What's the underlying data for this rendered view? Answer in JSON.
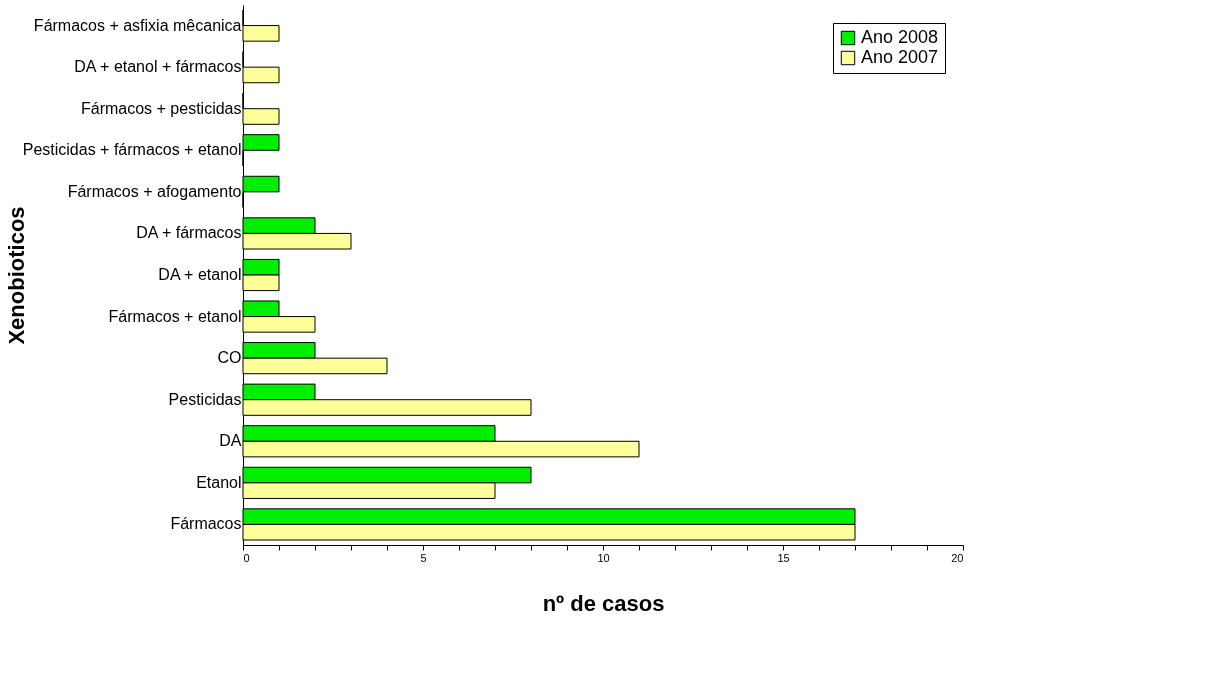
{
  "chart_data": {
    "type": "bar",
    "orientation": "horizontal",
    "xlabel": "nº de casos",
    "ylabel": "Xenobioticos",
    "categories": [
      "Fármacos + asfixia mêcanica",
      "DA + etanol + fármacos",
      "Fármacos + pesticidas",
      "Pesticidas + fármacos + etanol",
      "Fármacos + afogamento",
      "DA + fármacos",
      "DA + etanol",
      "Fármacos + etanol",
      "CO",
      "Pesticidas",
      "DA",
      "Etanol",
      "Fármacos"
    ],
    "series": [
      {
        "name": "Ano 2008",
        "color": "#00ee00",
        "values": [
          0,
          0,
          0,
          1,
          1,
          2,
          1,
          1,
          2,
          2,
          7,
          8,
          17
        ]
      },
      {
        "name": "Ano 2007",
        "color": "#ffff99",
        "values": [
          1,
          1,
          1,
          0,
          0,
          3,
          1,
          2,
          4,
          8,
          11,
          7,
          17
        ]
      }
    ],
    "xlim": [
      0,
      20
    ],
    "xticks": [
      0,
      {
        "value": 1,
        "label": null
      },
      {
        "value": 2,
        "label": null
      },
      {
        "value": 3,
        "label": null
      },
      {
        "value": 4,
        "label": null
      },
      5,
      {
        "value": 6,
        "label": null
      },
      {
        "value": 7,
        "label": null
      },
      {
        "value": 8,
        "label": null
      },
      {
        "value": 9,
        "label": null
      },
      10,
      {
        "value": 11,
        "label": null
      },
      {
        "value": 12,
        "label": null
      },
      {
        "value": 13,
        "label": null
      },
      {
        "value": 14,
        "label": null
      },
      15,
      {
        "value": 16,
        "label": null
      },
      {
        "value": 17,
        "label": null
      },
      {
        "value": 18,
        "label": null
      },
      {
        "value": 19,
        "label": null
      },
      20
    ],
    "grid": false,
    "legend": "top right"
  }
}
